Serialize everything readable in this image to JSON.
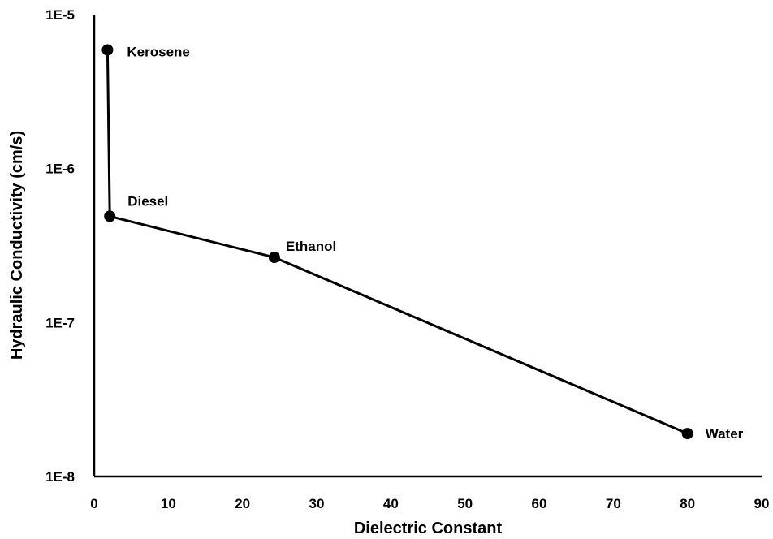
{
  "chart_data": {
    "type": "line",
    "xlabel": "Dielectric Constant",
    "ylabel": "Hydraulic Conductivity (cm/s)",
    "xlim": [
      0,
      90
    ],
    "ylim": [
      1e-08,
      1e-05
    ],
    "y_scale": "log",
    "x_ticks": [
      "0",
      "10",
      "20",
      "30",
      "40",
      "50",
      "60",
      "70",
      "80",
      "90"
    ],
    "y_ticks": [
      "1E-8",
      "1E-7",
      "1E-6",
      "1E-5"
    ],
    "grid": false,
    "legend": false,
    "series": [
      {
        "color": "#000000",
        "points": [
          {
            "label": "Kerosene",
            "x": 1.8,
            "y": 5.9e-06
          },
          {
            "label": "Diesel",
            "x": 2.1,
            "y": 4.9e-07
          },
          {
            "label": "Ethanol",
            "x": 24.3,
            "y": 2.65e-07
          },
          {
            "label": "Water",
            "x": 80,
            "y": 1.9e-08
          }
        ]
      }
    ]
  }
}
